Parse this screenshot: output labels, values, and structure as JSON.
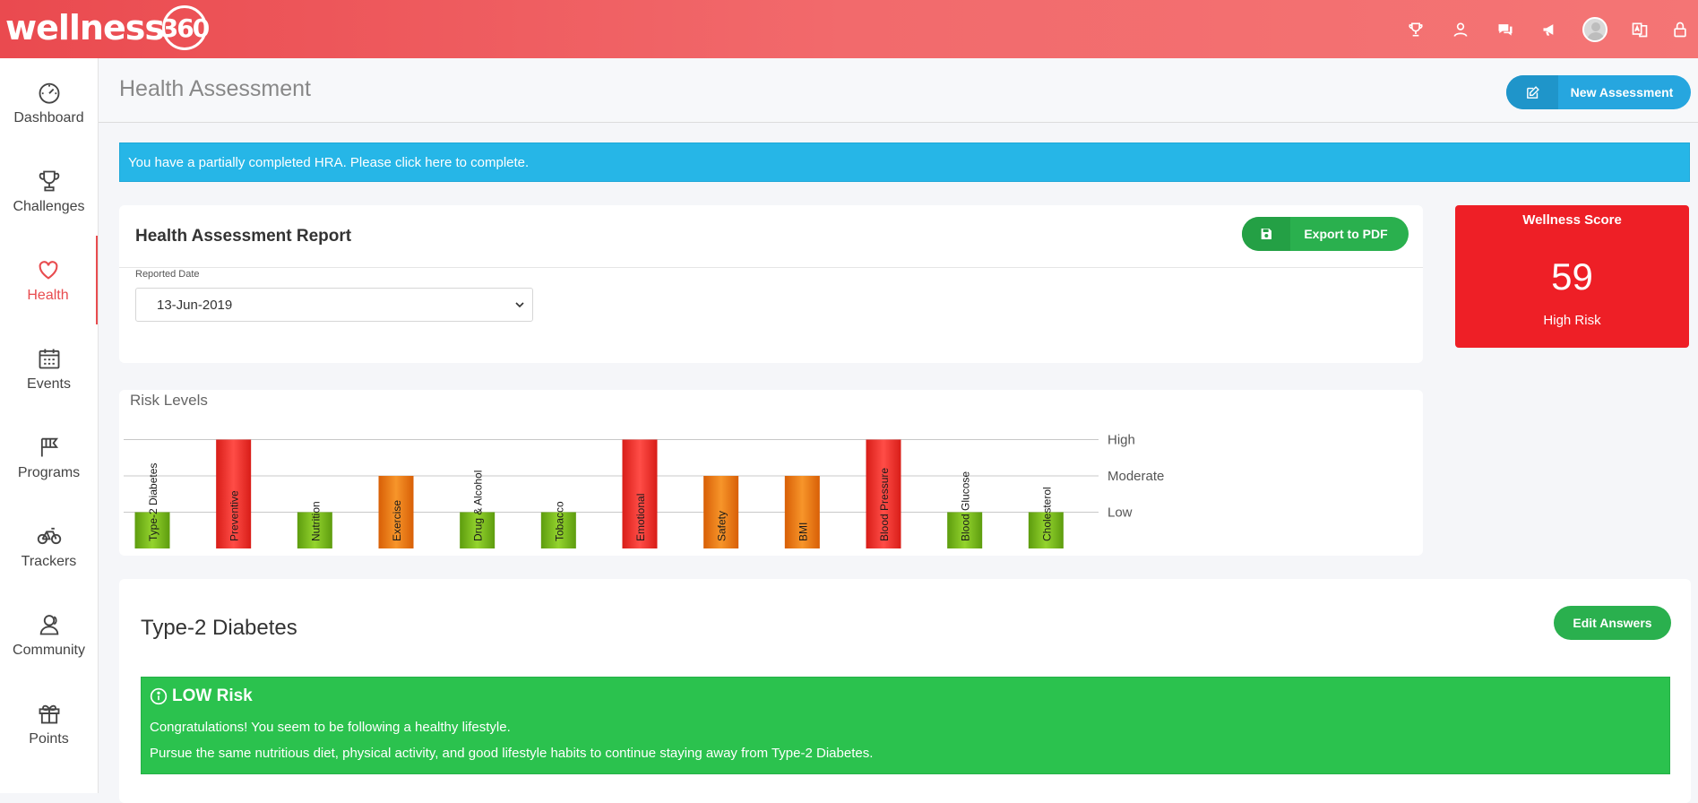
{
  "app": {
    "logo_text": "wellness",
    "logo_number": "360"
  },
  "topbar": {
    "icons": [
      "trophy-icon",
      "friends-icon",
      "chat-icon",
      "megaphone-icon",
      "user-avatar",
      "translate-icon",
      "lock-icon"
    ]
  },
  "sidebar": {
    "items": [
      {
        "label": "Dashboard",
        "icon": "speedometer-icon"
      },
      {
        "label": "Challenges",
        "icon": "trophy-icon"
      },
      {
        "label": "Health",
        "icon": "heart-icon",
        "active": true
      },
      {
        "label": "Events",
        "icon": "calendar-icon"
      },
      {
        "label": "Programs",
        "icon": "flag-icon"
      },
      {
        "label": "Trackers",
        "icon": "bicycle-icon"
      },
      {
        "label": "Community",
        "icon": "community-icon"
      },
      {
        "label": "Points",
        "icon": "gift-icon"
      }
    ]
  },
  "header": {
    "title": "Health Assessment",
    "new_button": "New Assessment"
  },
  "alert": {
    "text": "You have a partially completed HRA. Please click here to complete."
  },
  "report": {
    "title": "Health Assessment Report",
    "export_button": "Export to PDF",
    "date_label": "Reported Date",
    "date_value": "13-Jun-2019"
  },
  "wellness": {
    "title": "Wellness Score",
    "score": "59",
    "risk": "High Risk"
  },
  "colors": {
    "low": "#7cbf1e",
    "moderate": "#f07a12",
    "high": "#f0332e",
    "accent": "#e84c4f",
    "info": "#26b6e7",
    "success": "#2bc24e"
  },
  "chart_data": {
    "type": "bar",
    "title": "Risk Levels",
    "levels": [
      "Low",
      "Moderate",
      "High"
    ],
    "categories": [
      "Type-2 Diabetes",
      "Preventive",
      "Nutrition",
      "Exercise",
      "Drug & Alcohol",
      "Tobacco",
      "Emotional",
      "Safety",
      "BMI",
      "Blood Pressure",
      "Blood Glucose",
      "Cholesterol"
    ],
    "values": [
      "Low",
      "High",
      "Low",
      "Moderate",
      "Low",
      "Low",
      "High",
      "Moderate",
      "Moderate",
      "High",
      "Low",
      "Low"
    ],
    "grid": true,
    "y_axis_side": "right"
  },
  "diabetes": {
    "title": "Type-2 Diabetes",
    "edit_button": "Edit Answers",
    "risk_heading": "LOW Risk",
    "line1": "Congratulations! You seem to be following a healthy lifestyle.",
    "line2": "Pursue the same nutritious diet, physical activity, and good lifestyle habits to continue staying away from Type-2 Diabetes."
  }
}
